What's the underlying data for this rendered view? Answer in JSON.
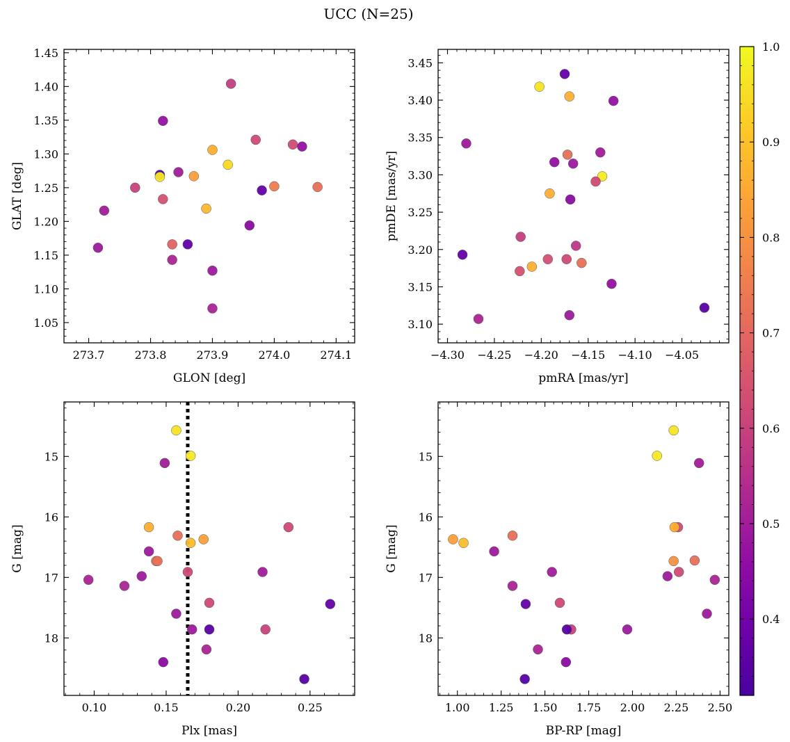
{
  "figure": {
    "title": "UCC (N=25)"
  },
  "colorbar": {
    "colormap": "plasma",
    "range": [
      0.32,
      1.0
    ],
    "ticks": [
      0.4,
      0.5,
      0.6,
      0.7,
      0.8,
      0.9,
      1.0
    ],
    "tick_labels": [
      "0.4",
      "0.5",
      "0.6",
      "0.7",
      "0.8",
      "0.9",
      "1.0"
    ]
  },
  "chart_data": [
    {
      "type": "scatter",
      "panel": "top-left",
      "xlabel": "GLON [deg]",
      "ylabel": "GLAT [deg]",
      "xlim": [
        273.66,
        274.13
      ],
      "ylim": [
        1.02,
        1.455
      ],
      "invert_y": false,
      "xticks": [
        273.7,
        273.8,
        273.9,
        274.0,
        274.1
      ],
      "xtick_labels": [
        "273.7",
        "273.8",
        "273.9",
        "274.0",
        "274.1"
      ],
      "yticks": [
        1.05,
        1.1,
        1.15,
        1.2,
        1.25,
        1.3,
        1.35,
        1.4,
        1.45
      ],
      "ytick_labels": [
        "1.05",
        "1.10",
        "1.15",
        "1.20",
        "1.25",
        "1.30",
        "1.35",
        "1.40",
        "1.45"
      ],
      "points": [
        {
          "x": 273.93,
          "y": 1.404,
          "c": 0.59
        },
        {
          "x": 273.82,
          "y": 1.349,
          "c": 0.47
        },
        {
          "x": 273.97,
          "y": 1.321,
          "c": 0.62
        },
        {
          "x": 274.03,
          "y": 1.314,
          "c": 0.63
        },
        {
          "x": 274.045,
          "y": 1.311,
          "c": 0.47
        },
        {
          "x": 273.9,
          "y": 1.306,
          "c": 0.86
        },
        {
          "x": 273.925,
          "y": 1.284,
          "c": 0.94
        },
        {
          "x": 273.845,
          "y": 1.273,
          "c": 0.5
        },
        {
          "x": 273.815,
          "y": 1.269,
          "c": 0.33
        },
        {
          "x": 273.87,
          "y": 1.267,
          "c": 0.83
        },
        {
          "x": 273.815,
          "y": 1.266,
          "c": 0.97
        },
        {
          "x": 274.0,
          "y": 1.252,
          "c": 0.75
        },
        {
          "x": 273.775,
          "y": 1.25,
          "c": 0.6
        },
        {
          "x": 274.07,
          "y": 1.251,
          "c": 0.72
        },
        {
          "x": 273.98,
          "y": 1.246,
          "c": 0.37
        },
        {
          "x": 273.82,
          "y": 1.233,
          "c": 0.64
        },
        {
          "x": 273.89,
          "y": 1.219,
          "c": 0.88
        },
        {
          "x": 273.725,
          "y": 1.216,
          "c": 0.5
        },
        {
          "x": 273.96,
          "y": 1.194,
          "c": 0.45
        },
        {
          "x": 273.835,
          "y": 1.166,
          "c": 0.69
        },
        {
          "x": 273.86,
          "y": 1.166,
          "c": 0.37
        },
        {
          "x": 273.715,
          "y": 1.161,
          "c": 0.49
        },
        {
          "x": 273.835,
          "y": 1.143,
          "c": 0.52
        },
        {
          "x": 273.9,
          "y": 1.127,
          "c": 0.49
        },
        {
          "x": 273.9,
          "y": 1.071,
          "c": 0.52
        }
      ]
    },
    {
      "type": "scatter",
      "panel": "top-right",
      "xlabel": "pmRA [mas/yr]",
      "ylabel": "pmDE [mas/yr]",
      "xlim": [
        -4.31,
        -4.0
      ],
      "ylim": [
        3.075,
        3.468
      ],
      "invert_y": false,
      "xticks": [
        -4.3,
        -4.25,
        -4.2,
        -4.15,
        -4.1,
        -4.05
      ],
      "xtick_labels": [
        "−4.30",
        "−4.25",
        "−4.20",
        "−4.15",
        "−4.10",
        "−4.05"
      ],
      "yticks": [
        3.1,
        3.15,
        3.2,
        3.25,
        3.3,
        3.35,
        3.4,
        3.45
      ],
      "ytick_labels": [
        "3.10",
        "3.15",
        "3.20",
        "3.25",
        "3.30",
        "3.35",
        "3.40",
        "3.45"
      ],
      "points": [
        {
          "x": -4.175,
          "y": 3.435,
          "c": 0.37
        },
        {
          "x": -4.202,
          "y": 3.418,
          "c": 0.96
        },
        {
          "x": -4.17,
          "y": 3.405,
          "c": 0.86
        },
        {
          "x": -4.123,
          "y": 3.399,
          "c": 0.47
        },
        {
          "x": -4.28,
          "y": 3.342,
          "c": 0.49
        },
        {
          "x": -4.137,
          "y": 3.33,
          "c": 0.5
        },
        {
          "x": -4.172,
          "y": 3.327,
          "c": 0.72
        },
        {
          "x": -4.186,
          "y": 3.317,
          "c": 0.47
        },
        {
          "x": -4.166,
          "y": 3.315,
          "c": 0.49
        },
        {
          "x": -4.135,
          "y": 3.298,
          "c": 0.97
        },
        {
          "x": -4.142,
          "y": 3.291,
          "c": 0.62
        },
        {
          "x": -4.191,
          "y": 3.275,
          "c": 0.86
        },
        {
          "x": -4.169,
          "y": 3.267,
          "c": 0.45
        },
        {
          "x": -4.222,
          "y": 3.217,
          "c": 0.59
        },
        {
          "x": -4.163,
          "y": 3.205,
          "c": 0.57
        },
        {
          "x": -4.284,
          "y": 3.193,
          "c": 0.37
        },
        {
          "x": -4.193,
          "y": 3.187,
          "c": 0.64
        },
        {
          "x": -4.173,
          "y": 3.187,
          "c": 0.62
        },
        {
          "x": -4.157,
          "y": 3.182,
          "c": 0.72
        },
        {
          "x": -4.21,
          "y": 3.177,
          "c": 0.86
        },
        {
          "x": -4.223,
          "y": 3.171,
          "c": 0.64
        },
        {
          "x": -4.125,
          "y": 3.154,
          "c": 0.47
        },
        {
          "x": -4.026,
          "y": 3.122,
          "c": 0.35
        },
        {
          "x": -4.17,
          "y": 3.112,
          "c": 0.49
        },
        {
          "x": -4.267,
          "y": 3.107,
          "c": 0.52
        }
      ]
    },
    {
      "type": "scatter",
      "panel": "bottom-left",
      "xlabel": "Plx [mas]",
      "ylabel": "G [mag]",
      "xlim": [
        0.079,
        0.281
      ],
      "ylim": [
        14.1,
        18.95
      ],
      "invert_y": true,
      "vline": {
        "x": 0.165,
        "style": "dotted"
      },
      "xticks": [
        0.1,
        0.15,
        0.2,
        0.25
      ],
      "xtick_labels": [
        "0.10",
        "0.15",
        "0.20",
        "0.25"
      ],
      "yticks": [
        15,
        16,
        17,
        18
      ],
      "ytick_labels": [
        "15",
        "16",
        "17",
        "18"
      ],
      "points": [
        {
          "x": 0.157,
          "y": 14.57,
          "c": 0.96
        },
        {
          "x": 0.167,
          "y": 14.99,
          "c": 0.97
        },
        {
          "x": 0.149,
          "y": 15.11,
          "c": 0.5
        },
        {
          "x": 0.138,
          "y": 16.17,
          "c": 0.86
        },
        {
          "x": 0.235,
          "y": 16.17,
          "c": 0.62
        },
        {
          "x": 0.158,
          "y": 16.31,
          "c": 0.72
        },
        {
          "x": 0.176,
          "y": 16.37,
          "c": 0.83
        },
        {
          "x": 0.167,
          "y": 16.43,
          "c": 0.89
        },
        {
          "x": 0.138,
          "y": 16.57,
          "c": 0.49
        },
        {
          "x": 0.143,
          "y": 16.73,
          "c": 0.75
        },
        {
          "x": 0.144,
          "y": 16.73,
          "c": 0.72
        },
        {
          "x": 0.217,
          "y": 16.91,
          "c": 0.5
        },
        {
          "x": 0.165,
          "y": 16.91,
          "c": 0.62
        },
        {
          "x": 0.133,
          "y": 16.98,
          "c": 0.49
        },
        {
          "x": 0.096,
          "y": 17.04,
          "c": 0.52
        },
        {
          "x": 0.121,
          "y": 17.14,
          "c": 0.52
        },
        {
          "x": 0.264,
          "y": 17.44,
          "c": 0.37
        },
        {
          "x": 0.18,
          "y": 17.42,
          "c": 0.62
        },
        {
          "x": 0.157,
          "y": 17.6,
          "c": 0.49
        },
        {
          "x": 0.219,
          "y": 17.86,
          "c": 0.6
        },
        {
          "x": 0.168,
          "y": 17.86,
          "c": 0.49
        },
        {
          "x": 0.18,
          "y": 17.86,
          "c": 0.35
        },
        {
          "x": 0.178,
          "y": 18.19,
          "c": 0.52
        },
        {
          "x": 0.148,
          "y": 18.4,
          "c": 0.45
        },
        {
          "x": 0.246,
          "y": 18.68,
          "c": 0.35
        }
      ]
    },
    {
      "type": "scatter",
      "panel": "bottom-right",
      "xlabel": "BP-RP [mag]",
      "ylabel": "G [mag]",
      "xlim": [
        0.89,
        2.55
      ],
      "ylim": [
        14.1,
        18.95
      ],
      "invert_y": true,
      "xticks": [
        1.0,
        1.25,
        1.5,
        1.75,
        2.0,
        2.25,
        2.5
      ],
      "xtick_labels": [
        "1.00",
        "1.25",
        "1.50",
        "1.75",
        "2.00",
        "2.25",
        "2.50"
      ],
      "yticks": [
        15,
        16,
        17,
        18
      ],
      "ytick_labels": [
        "15",
        "16",
        "17",
        "18"
      ],
      "points": [
        {
          "x": 2.235,
          "y": 14.57,
          "c": 0.96
        },
        {
          "x": 2.14,
          "y": 14.99,
          "c": 0.97
        },
        {
          "x": 2.38,
          "y": 15.11,
          "c": 0.5
        },
        {
          "x": 2.26,
          "y": 16.17,
          "c": 0.62
        },
        {
          "x": 2.24,
          "y": 16.17,
          "c": 0.86
        },
        {
          "x": 1.315,
          "y": 16.31,
          "c": 0.72
        },
        {
          "x": 0.975,
          "y": 16.37,
          "c": 0.83
        },
        {
          "x": 1.035,
          "y": 16.43,
          "c": 0.89
        },
        {
          "x": 1.21,
          "y": 16.57,
          "c": 0.49
        },
        {
          "x": 2.235,
          "y": 16.73,
          "c": 0.8
        },
        {
          "x": 2.355,
          "y": 16.72,
          "c": 0.72
        },
        {
          "x": 1.54,
          "y": 16.91,
          "c": 0.5
        },
        {
          "x": 2.265,
          "y": 16.91,
          "c": 0.62
        },
        {
          "x": 2.2,
          "y": 16.98,
          "c": 0.49
        },
        {
          "x": 2.47,
          "y": 17.04,
          "c": 0.52
        },
        {
          "x": 1.315,
          "y": 17.14,
          "c": 0.52
        },
        {
          "x": 1.39,
          "y": 17.44,
          "c": 0.37
        },
        {
          "x": 1.585,
          "y": 17.42,
          "c": 0.62
        },
        {
          "x": 2.425,
          "y": 17.6,
          "c": 0.49
        },
        {
          "x": 1.65,
          "y": 17.86,
          "c": 0.6
        },
        {
          "x": 1.97,
          "y": 17.86,
          "c": 0.49
        },
        {
          "x": 1.625,
          "y": 17.86,
          "c": 0.35
        },
        {
          "x": 1.46,
          "y": 18.19,
          "c": 0.52
        },
        {
          "x": 1.62,
          "y": 18.4,
          "c": 0.45
        },
        {
          "x": 1.385,
          "y": 18.68,
          "c": 0.35
        }
      ]
    }
  ]
}
